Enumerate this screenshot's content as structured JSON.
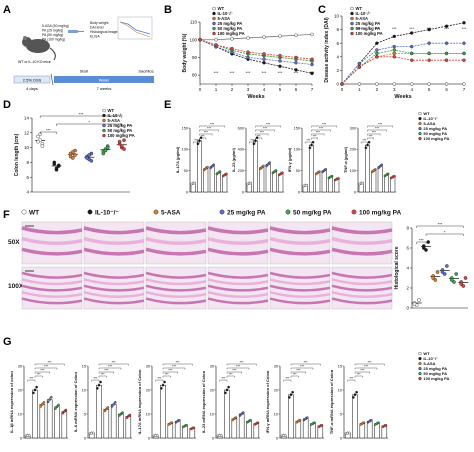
{
  "panel_letters": [
    "A",
    "B",
    "C",
    "D",
    "E",
    "F",
    "G"
  ],
  "colors": {
    "wt": "#ffffff",
    "il10": "#1a1a1a",
    "asa": "#e07b2a",
    "pa25": "#5a6fd6",
    "pa50": "#3aaa4a",
    "pa100": "#e0403a",
    "bar_fill": "#ffffff",
    "tissue_bg": "#f3e6f2",
    "tissue_dark": "#c060a8",
    "tissue_light": "#e6a8d8"
  },
  "panelA": {
    "mouse_label": "WT or IL-10 KO mice",
    "groups": [
      "5-ASA (50 mg/kg)",
      "PA (25 mg/kg)",
      "PA (50 mg/kg)",
      "PA (100 mg/kg)"
    ],
    "readouts": [
      "Body weight",
      "DAI level",
      "Histological image",
      "ELISA"
    ],
    "timeline": [
      "2.5% DSS",
      "Start",
      "Water",
      "Sacrifice"
    ],
    "durations": [
      "4 days",
      "7 weeks"
    ]
  },
  "legend_groups": [
    "WT",
    "IL-10⁻/⁻",
    "5-ASA",
    "25 mg/kg PA",
    "50 mg/kg PA",
    "100 mg/kg PA"
  ],
  "panelF": {
    "legend": [
      "WT",
      "IL-10⁻/⁻",
      "5-ASA",
      "25 mg/kg PA",
      "50 mg/kg PA",
      "100 mg/kg PA"
    ],
    "row_labels": [
      "50X",
      "100X"
    ]
  },
  "sig": "***",
  "sig_single": "*",
  "chart_data": [
    {
      "panel": "B",
      "type": "line",
      "xlabel": "Weeks",
      "ylabel": "Body weight (%)",
      "x": [
        0,
        1,
        2,
        3,
        4,
        5,
        6,
        7
      ],
      "xticks": [
        "0",
        "1",
        "2",
        "3",
        "4",
        "5",
        "6",
        "7"
      ],
      "yticks": [
        "80",
        "90",
        "100",
        "110"
      ],
      "ylim": [
        75,
        110
      ],
      "series": [
        {
          "name": "WT",
          "values": [
            100,
            100,
            100.5,
            101,
            101.5,
            102,
            102.5,
            103
          ]
        },
        {
          "name": "IL-10⁻/⁻",
          "values": [
            100,
            96,
            92,
            89,
            87,
            85,
            83,
            81
          ]
        },
        {
          "name": "5-ASA",
          "values": [
            100,
            97,
            94,
            92,
            91,
            90,
            89,
            88
          ]
        },
        {
          "name": "25 mg/kg PA",
          "values": [
            100,
            96,
            93,
            90,
            89,
            88,
            87,
            86
          ]
        },
        {
          "name": "50 mg/kg PA",
          "values": [
            100,
            97,
            94,
            92,
            91,
            90,
            89,
            88
          ]
        },
        {
          "name": "100 mg/kg PA",
          "values": [
            100,
            97,
            95,
            93,
            92,
            91,
            90,
            89
          ]
        }
      ]
    },
    {
      "panel": "C",
      "type": "line",
      "xlabel": "Weeks",
      "ylabel": "Disease activity index (DAI)",
      "x": [
        0,
        1,
        2,
        3,
        4,
        5,
        6,
        7
      ],
      "xticks": [
        "0",
        "1",
        "2",
        "3",
        "4",
        "5",
        "6",
        "7"
      ],
      "yticks": [
        "0",
        "2",
        "4",
        "6",
        "8",
        "10"
      ],
      "ylim": [
        0,
        10
      ],
      "series": [
        {
          "name": "WT",
          "values": [
            0,
            0,
            0,
            0,
            0,
            0,
            0,
            0
          ]
        },
        {
          "name": "IL-10⁻/⁻",
          "values": [
            0,
            3,
            6,
            7,
            7.5,
            8,
            8.5,
            9
          ]
        },
        {
          "name": "5-ASA",
          "values": [
            0,
            2.5,
            4,
            4.5,
            4.5,
            4.5,
            4.5,
            4.5
          ]
        },
        {
          "name": "25 mg/kg PA",
          "values": [
            0,
            3,
            5,
            5.5,
            5.5,
            6,
            6,
            6
          ]
        },
        {
          "name": "50 mg/kg PA",
          "values": [
            0,
            2.5,
            4.5,
            5,
            4.5,
            4.5,
            4.5,
            4.5
          ]
        },
        {
          "name": "100 mg/kg PA",
          "values": [
            0,
            2.5,
            4,
            4,
            3.5,
            3.5,
            3.5,
            3.5
          ]
        }
      ]
    },
    {
      "panel": "D",
      "type": "scatter",
      "ylabel": "Colon length (cm)",
      "yticks": [
        "4",
        "6",
        "8",
        "10",
        "12",
        "14"
      ],
      "ylim": [
        4,
        14
      ],
      "groups": [
        {
          "name": "WT",
          "values": [
            11.5,
            11,
            10.5,
            10.8,
            11.8,
            10.2
          ]
        },
        {
          "name": "IL-10⁻/⁻",
          "values": [
            7.8,
            7.2,
            7.5,
            8,
            7,
            7.6
          ]
        },
        {
          "name": "5-ASA",
          "values": [
            9.2,
            8.6,
            9.6,
            8.8,
            9.4,
            9
          ]
        },
        {
          "name": "25 mg/kg PA",
          "values": [
            8.8,
            8.4,
            9.2,
            8.6,
            9,
            8.2
          ]
        },
        {
          "name": "50 mg/kg PA",
          "values": [
            9.5,
            9.8,
            10.2,
            9.2,
            9.6,
            10
          ]
        },
        {
          "name": "100 mg/kg PA",
          "values": [
            10.5,
            10,
            9.8,
            10.8,
            10.2,
            11
          ]
        }
      ]
    },
    {
      "panel": "E",
      "type": "bar",
      "categories": [
        "WT",
        "IL-10⁻/⁻",
        "5-ASA",
        "25 mg/kg PA",
        "50 mg/kg PA",
        "100 mg/kg PA"
      ],
      "series": [
        {
          "ylabel": "IL-17A (pg/ml)",
          "yticks": [
            "0",
            "50",
            "100",
            "150"
          ],
          "ylim": [
            0,
            150
          ],
          "values": [
            20,
            120,
            55,
            60,
            45,
            40
          ]
        },
        {
          "ylabel": "IL-23 (pg/ml)",
          "yticks": [
            "0",
            "200",
            "400",
            "600"
          ],
          "ylim": [
            0,
            600
          ],
          "values": [
            80,
            480,
            230,
            260,
            190,
            170
          ]
        },
        {
          "ylabel": "IFN-γ (pg/ml)",
          "yticks": [
            "0",
            "50",
            "100",
            "150"
          ],
          "ylim": [
            0,
            150
          ],
          "values": [
            15,
            110,
            45,
            50,
            35,
            30
          ]
        },
        {
          "ylabel": "TNF-α (pg/ml)",
          "yticks": [
            "0",
            "100",
            "200",
            "300"
          ],
          "ylim": [
            0,
            300
          ],
          "values": [
            40,
            220,
            100,
            120,
            80,
            70
          ]
        }
      ]
    },
    {
      "panel": "F",
      "type": "scatter",
      "ylabel": "Histological score",
      "yticks": [
        "0",
        "2",
        "4",
        "6",
        "8"
      ],
      "ylim": [
        0,
        8
      ],
      "groups": [
        {
          "name": "WT",
          "values": [
            0.5,
            0.3,
            0.8,
            0.4
          ]
        },
        {
          "name": "IL-10⁻/⁻",
          "values": [
            6.2,
            5.8,
            6.6,
            6.0
          ]
        },
        {
          "name": "5-ASA",
          "values": [
            3.2,
            2.8,
            3.6,
            3.0
          ]
        },
        {
          "name": "25 mg/kg PA",
          "values": [
            3.8,
            3.4,
            4.2,
            3.6
          ]
        },
        {
          "name": "50 mg/kg PA",
          "values": [
            3.0,
            2.6,
            3.4,
            2.8
          ]
        },
        {
          "name": "100 mg/kg PA",
          "values": [
            2.6,
            2.2,
            3.0,
            2.4
          ]
        }
      ]
    },
    {
      "panel": "G",
      "type": "bar",
      "categories": [
        "WT",
        "IL-10⁻/⁻",
        "5-ASA",
        "25 mg/kg PA",
        "50 mg/kg PA",
        "100 mg/kg PA"
      ],
      "series": [
        {
          "ylabel": "IL-1β mRNA expression of colon",
          "yticks": [
            "0",
            "10",
            "20",
            "30"
          ],
          "ylim": [
            0,
            30
          ],
          "values": [
            1,
            20,
            14,
            16,
            13,
            11
          ]
        },
        {
          "ylabel": "IL-6 mRNA expression of Colon",
          "yticks": [
            "0",
            "5",
            "10",
            "15"
          ],
          "ylim": [
            0,
            15
          ],
          "values": [
            1,
            11,
            6,
            7,
            5,
            4.5
          ]
        },
        {
          "ylabel": "IL-17A mRNA expression of Colon",
          "yticks": [
            "0",
            "10",
            "20",
            "30"
          ],
          "ylim": [
            0,
            30
          ],
          "values": [
            1,
            22,
            6,
            7,
            5,
            4
          ]
        },
        {
          "ylabel": "IL-23 mRNA expression of Colon",
          "yticks": [
            "0",
            "10",
            "20",
            "30"
          ],
          "ylim": [
            0,
            30
          ],
          "values": [
            1,
            20,
            8,
            10,
            7,
            6
          ]
        },
        {
          "ylabel": "IFN-γ mRNA expression of Colon",
          "yticks": [
            "0",
            "10",
            "20",
            "30"
          ],
          "ylim": [
            0,
            30
          ],
          "values": [
            1,
            18,
            7,
            8,
            6,
            5
          ]
        },
        {
          "ylabel": "TNF-α mRNA expression of Colon",
          "yticks": [
            "0",
            "5",
            "10",
            "15"
          ],
          "ylim": [
            0,
            15
          ],
          "values": [
            1,
            9,
            3,
            3.5,
            3,
            2.5
          ]
        }
      ]
    }
  ]
}
